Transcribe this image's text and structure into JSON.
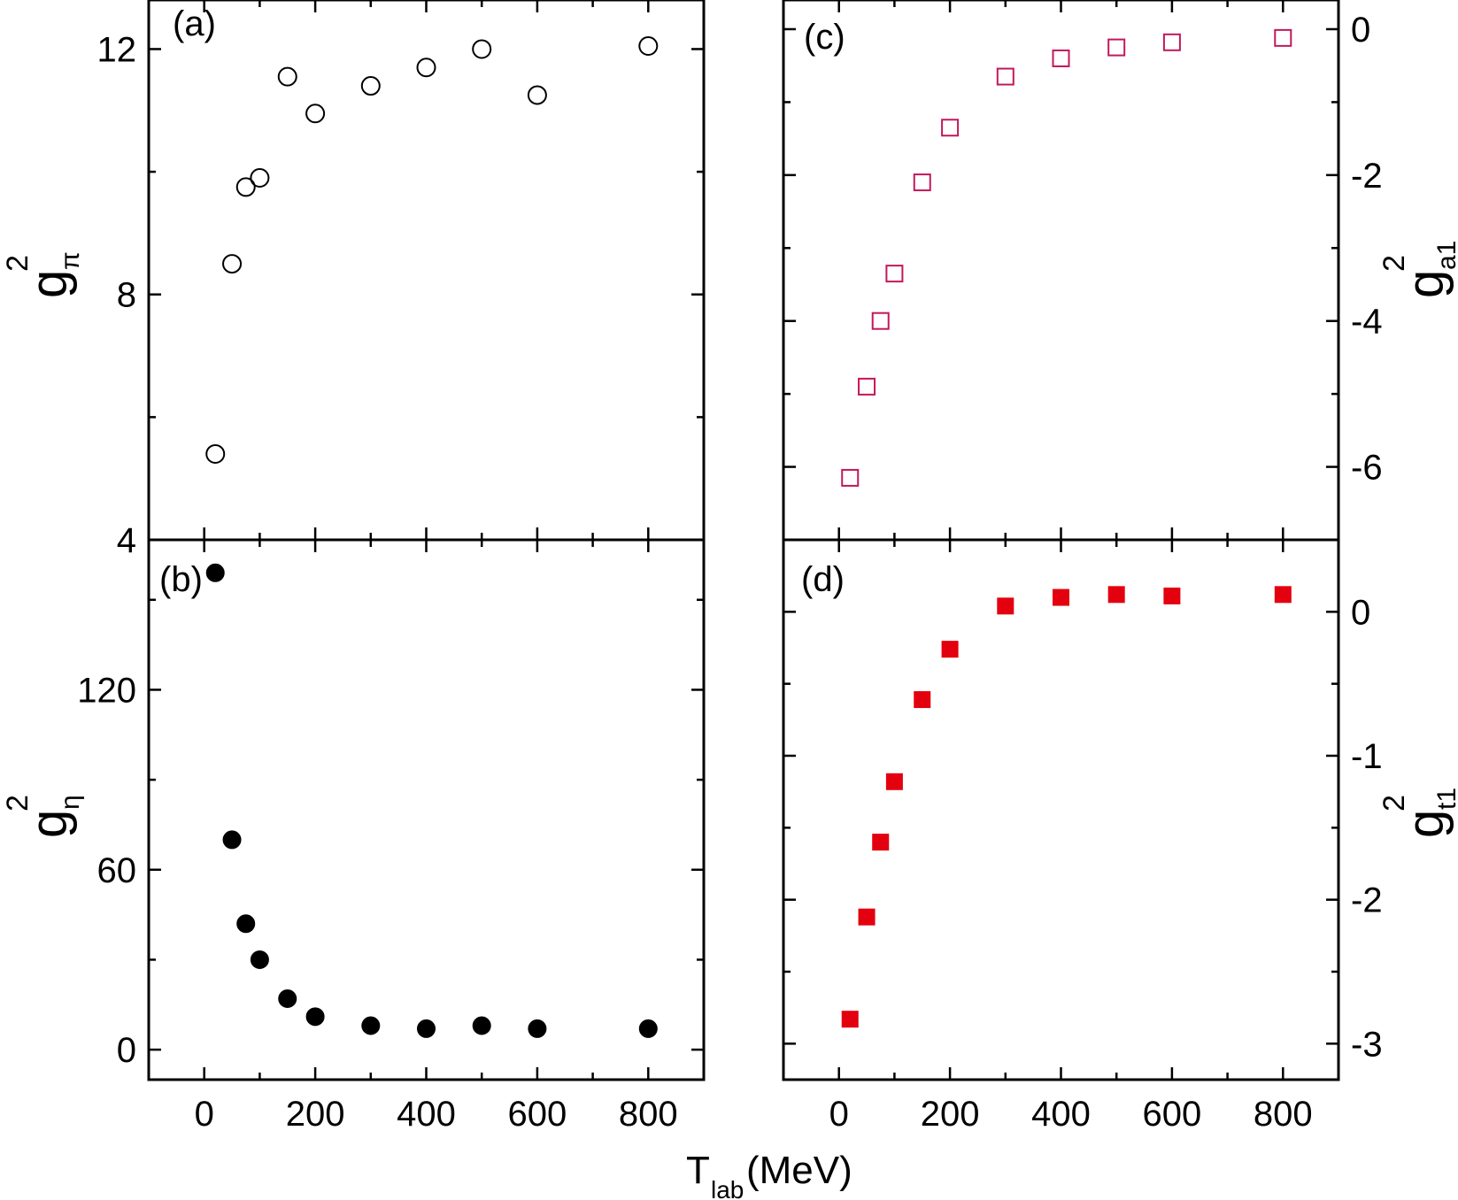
{
  "x_axis": {
    "title_main": "T",
    "title_sub": "lab",
    "title_unit": "(MeV)",
    "ticks": [
      0,
      200,
      400,
      600,
      800
    ],
    "tick_labels": [
      "0",
      "200",
      "400",
      "600",
      "800"
    ],
    "range": [
      -100,
      900
    ]
  },
  "chart_data": [
    {
      "id": "a",
      "type": "scatter",
      "panel_label": "(a)",
      "ylabel_main": "g",
      "ylabel_sup": "2",
      "ylabel_sub": "π",
      "ylim": [
        4,
        12.8
      ],
      "yticks": [
        4,
        8,
        12
      ],
      "ytick_labels": [
        "4",
        "8",
        "12"
      ],
      "marker": "open-circle",
      "color": "#000000",
      "x": [
        20,
        50,
        75,
        100,
        150,
        200,
        300,
        400,
        500,
        600,
        800
      ],
      "y": [
        5.4,
        8.5,
        9.75,
        9.9,
        11.55,
        10.95,
        11.4,
        11.7,
        12.0,
        11.25,
        12.05
      ]
    },
    {
      "id": "b",
      "type": "scatter",
      "panel_label": "(b)",
      "ylabel_main": "g",
      "ylabel_sup": "2",
      "ylabel_sub": "η",
      "ylim": [
        -10,
        170
      ],
      "yticks": [
        0,
        60,
        120
      ],
      "ytick_labels": [
        "0",
        "60",
        "120"
      ],
      "marker": "filled-circle",
      "color": "#000000",
      "x": [
        20,
        50,
        75,
        100,
        150,
        200,
        300,
        400,
        500,
        600,
        800
      ],
      "y": [
        159,
        70,
        42,
        30,
        17,
        11,
        8,
        7,
        8,
        7,
        7
      ]
    },
    {
      "id": "c",
      "type": "scatter",
      "panel_label": "(c)",
      "ylabel_main": "g",
      "ylabel_sup": "2",
      "ylabel_sub": "a1",
      "ylim": [
        -7,
        0.4
      ],
      "yticks": [
        0,
        -2,
        -4,
        -6
      ],
      "ytick_labels": [
        "0",
        "-2",
        "-4",
        "-6"
      ],
      "marker": "open-square",
      "color": "#c2185b",
      "x": [
        20,
        50,
        75,
        100,
        150,
        200,
        300,
        400,
        500,
        600,
        800
      ],
      "y": [
        -6.15,
        -4.9,
        -4.0,
        -3.35,
        -2.1,
        -1.35,
        -0.65,
        -0.4,
        -0.25,
        -0.18,
        -0.12
      ]
    },
    {
      "id": "d",
      "type": "scatter",
      "panel_label": "(d)",
      "ylabel_main": "g",
      "ylabel_sup": "2",
      "ylabel_sub": "t1",
      "ylim": [
        -3.25,
        0.5
      ],
      "yticks": [
        0,
        -1,
        -2,
        -3
      ],
      "ytick_labels": [
        "0",
        "-1",
        "-2",
        "-3"
      ],
      "marker": "filled-square",
      "color": "#e3000f",
      "x": [
        20,
        50,
        75,
        100,
        150,
        200,
        300,
        400,
        500,
        600,
        800
      ],
      "y": [
        -2.83,
        -2.12,
        -1.6,
        -1.18,
        -0.61,
        -0.26,
        0.04,
        0.1,
        0.12,
        0.11,
        0.12
      ]
    }
  ]
}
